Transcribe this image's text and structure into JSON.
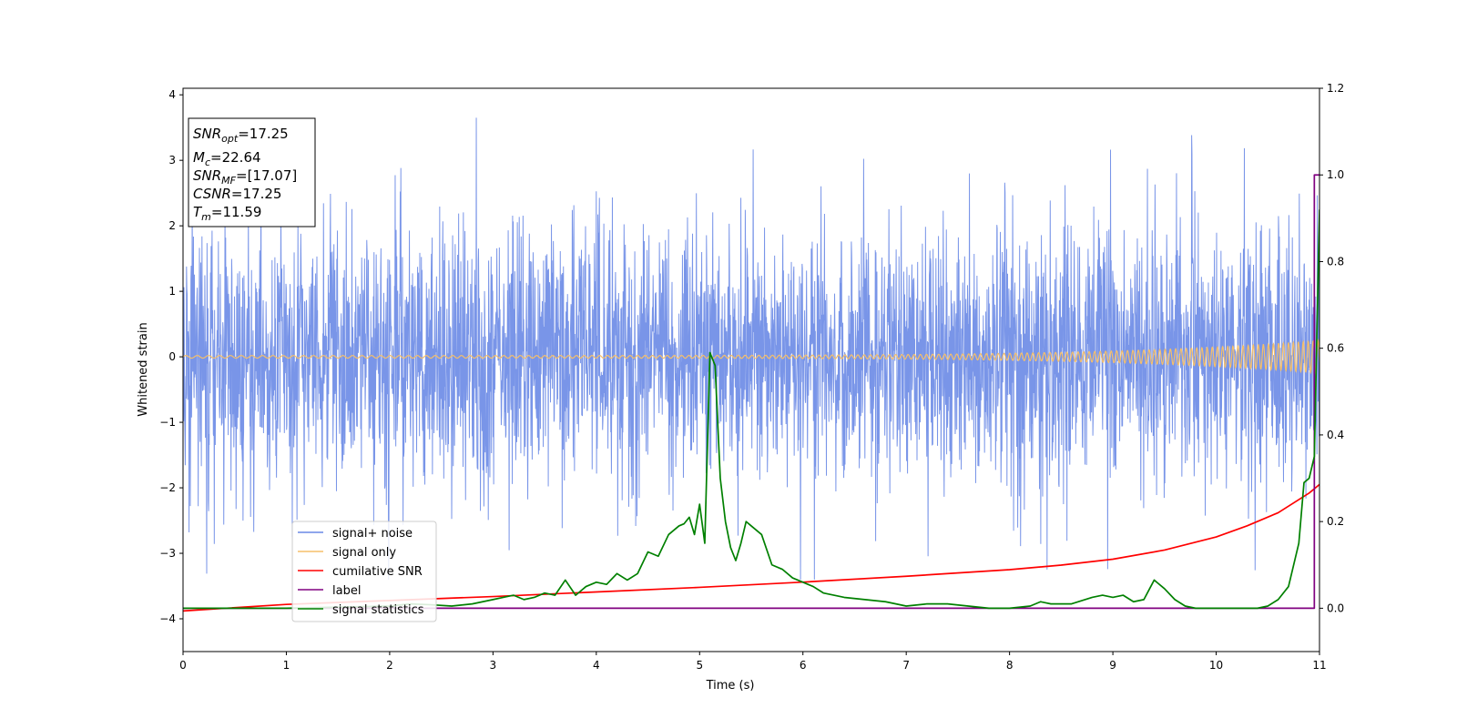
{
  "chart_data": {
    "type": "line",
    "xlabel": "Time (s)",
    "ylabel": "Whitened strain",
    "xlim": [
      0,
      11
    ],
    "ylim": [
      -4.5,
      4.1
    ],
    "y2lim": [
      -0.1,
      1.2
    ],
    "x_ticks": [
      0,
      1,
      2,
      3,
      4,
      5,
      6,
      7,
      8,
      9,
      10,
      11
    ],
    "y_ticks": [
      -4,
      -3,
      -2,
      -1,
      0,
      1,
      2,
      3,
      4
    ],
    "y2_ticks": [
      "0.0",
      "0.2",
      "0.4",
      "0.6",
      "0.8",
      "1.0",
      "1.2"
    ],
    "info_box": {
      "snr_opt": {
        "sym": "SNR",
        "sub": "opt",
        "value": "=17.25"
      },
      "mc": {
        "sym": "M",
        "sub": "c",
        "value": "=22.64"
      },
      "snr_mf": {
        "sym": "SNR",
        "sub": "MF",
        "value": "=[17.07]"
      },
      "csnr": {
        "sym": "CSNR",
        "sub": "",
        "value": "=17.25"
      },
      "tm": {
        "sym": "T",
        "sub": "m",
        "value": "=11.59"
      }
    },
    "legend": {
      "position": "lower-left",
      "entries": [
        "signal+ noise",
        "signal only",
        "cumilative SNR",
        "label",
        "signal statistics"
      ]
    },
    "series": [
      {
        "name": "signal+ noise",
        "axis": "left",
        "color": "#6a89e6",
        "description": "whitened noise, roughly -2.5 to 3.6"
      },
      {
        "name": "signal only",
        "axis": "left",
        "color": "#f5bf6a",
        "chirp_amplitude_start": 0.02,
        "chirp_amplitude_end": 0.25
      },
      {
        "name": "cumilative SNR",
        "axis": "left",
        "color": "#ff0000",
        "x": [
          0,
          1,
          2,
          3,
          4,
          5,
          6,
          7,
          8,
          8.5,
          9,
          9.5,
          10,
          10.3,
          10.6,
          10.9,
          11
        ],
        "y": [
          -3.88,
          -3.78,
          -3.72,
          -3.66,
          -3.59,
          -3.52,
          -3.44,
          -3.35,
          -3.25,
          -3.18,
          -3.09,
          -2.95,
          -2.75,
          -2.58,
          -2.38,
          -2.08,
          -1.95
        ]
      },
      {
        "name": "label",
        "axis": "right",
        "color": "#800080",
        "x": [
          0,
          10.95,
          10.95,
          11
        ],
        "y": [
          0,
          0,
          1.0,
          1.0
        ]
      },
      {
        "name": "signal statistics",
        "axis": "right",
        "color": "#008000",
        "x": [
          0,
          1,
          2,
          2.2,
          2.4,
          2.6,
          2.8,
          3.0,
          3.1,
          3.2,
          3.3,
          3.4,
          3.5,
          3.6,
          3.7,
          3.8,
          3.9,
          4.0,
          4.1,
          4.2,
          4.3,
          4.4,
          4.5,
          4.6,
          4.7,
          4.8,
          4.85,
          4.9,
          4.95,
          5.0,
          5.05,
          5.1,
          5.15,
          5.2,
          5.25,
          5.3,
          5.35,
          5.4,
          5.45,
          5.5,
          5.6,
          5.7,
          5.8,
          5.9,
          6.0,
          6.1,
          6.2,
          6.4,
          6.6,
          6.8,
          7.0,
          7.2,
          7.4,
          7.6,
          7.8,
          8.0,
          8.2,
          8.3,
          8.4,
          8.6,
          8.8,
          8.9,
          9.0,
          9.1,
          9.2,
          9.3,
          9.4,
          9.5,
          9.6,
          9.7,
          9.8,
          10.0,
          10.2,
          10.4,
          10.5,
          10.6,
          10.7,
          10.8,
          10.85,
          10.9,
          10.95,
          11.0
        ],
        "y": [
          0.0,
          0.0,
          0.005,
          0.01,
          0.008,
          0.005,
          0.01,
          0.02,
          0.025,
          0.03,
          0.02,
          0.025,
          0.035,
          0.03,
          0.065,
          0.03,
          0.05,
          0.06,
          0.055,
          0.08,
          0.065,
          0.08,
          0.13,
          0.12,
          0.17,
          0.19,
          0.195,
          0.21,
          0.17,
          0.24,
          0.15,
          0.59,
          0.56,
          0.3,
          0.2,
          0.14,
          0.11,
          0.15,
          0.2,
          0.19,
          0.17,
          0.1,
          0.09,
          0.07,
          0.06,
          0.05,
          0.035,
          0.025,
          0.02,
          0.015,
          0.005,
          0.01,
          0.01,
          0.005,
          0.0,
          0.0,
          0.005,
          0.015,
          0.01,
          0.01,
          0.025,
          0.03,
          0.025,
          0.03,
          0.015,
          0.02,
          0.065,
          0.045,
          0.02,
          0.005,
          0.0,
          0.0,
          0.0,
          0.0,
          0.005,
          0.02,
          0.05,
          0.15,
          0.29,
          0.3,
          0.35,
          0.92
        ]
      }
    ]
  }
}
